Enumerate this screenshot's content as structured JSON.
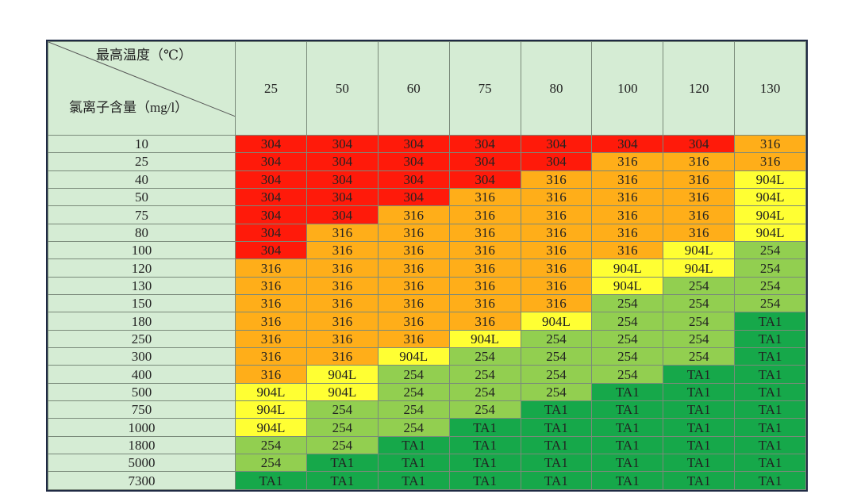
{
  "table": {
    "corner_top": "最高温度（℃）",
    "corner_bottom": "氯离子含量（mg/l）",
    "columns": [
      "25",
      "50",
      "60",
      "75",
      "80",
      "100",
      "120",
      "130"
    ],
    "grade_colors": {
      "304": "#ff1a0a",
      "316": "#ffae19",
      "904L": "#ffff33",
      "254": "#92cf50",
      "TA1": "#16a84a"
    },
    "rows": [
      {
        "label": "10",
        "cells": [
          "304",
          "304",
          "304",
          "304",
          "304",
          "304",
          "304",
          "316"
        ]
      },
      {
        "label": "25",
        "cells": [
          "304",
          "304",
          "304",
          "304",
          "304",
          "316",
          "316",
          "316"
        ]
      },
      {
        "label": "40",
        "cells": [
          "304",
          "304",
          "304",
          "304",
          "316",
          "316",
          "316",
          "904L"
        ]
      },
      {
        "label": "50",
        "cells": [
          "304",
          "304",
          "304",
          "316",
          "316",
          "316",
          "316",
          "904L"
        ]
      },
      {
        "label": "75",
        "cells": [
          "304",
          "304",
          "316",
          "316",
          "316",
          "316",
          "316",
          "904L"
        ]
      },
      {
        "label": "80",
        "cells": [
          "304",
          "316",
          "316",
          "316",
          "316",
          "316",
          "316",
          "904L"
        ]
      },
      {
        "label": "100",
        "cells": [
          "304",
          "316",
          "316",
          "316",
          "316",
          "316",
          "904L",
          "254"
        ]
      },
      {
        "label": "120",
        "cells": [
          "316",
          "316",
          "316",
          "316",
          "316",
          "904L",
          "904L",
          "254"
        ]
      },
      {
        "label": "130",
        "cells": [
          "316",
          "316",
          "316",
          "316",
          "316",
          "904L",
          "254",
          "254"
        ]
      },
      {
        "label": "150",
        "cells": [
          "316",
          "316",
          "316",
          "316",
          "316",
          "254",
          "254",
          "254"
        ]
      },
      {
        "label": "180",
        "cells": [
          "316",
          "316",
          "316",
          "316",
          "904L",
          "254",
          "254",
          "TA1"
        ]
      },
      {
        "label": "250",
        "cells": [
          "316",
          "316",
          "316",
          "904L",
          "254",
          "254",
          "254",
          "TA1"
        ]
      },
      {
        "label": "300",
        "cells": [
          "316",
          "316",
          "904L",
          "254",
          "254",
          "254",
          "254",
          "TA1"
        ]
      },
      {
        "label": "400",
        "cells": [
          "316",
          "904L",
          "254",
          "254",
          "254",
          "254",
          "TA1",
          "TA1"
        ]
      },
      {
        "label": "500",
        "cells": [
          "904L",
          "904L",
          "254",
          "254",
          "254",
          "TA1",
          "TA1",
          "TA1"
        ]
      },
      {
        "label": "750",
        "cells": [
          "904L",
          "254",
          "254",
          "254",
          "TA1",
          "TA1",
          "TA1",
          "TA1"
        ]
      },
      {
        "label": "1000",
        "cells": [
          "904L",
          "254",
          "254",
          "TA1",
          "TA1",
          "TA1",
          "TA1",
          "TA1"
        ]
      },
      {
        "label": "1800",
        "cells": [
          "254",
          "254",
          "TA1",
          "TA1",
          "TA1",
          "TA1",
          "TA1",
          "TA1"
        ]
      },
      {
        "label": "5000",
        "cells": [
          "254",
          "TA1",
          "TA1",
          "TA1",
          "TA1",
          "TA1",
          "TA1",
          "TA1"
        ]
      },
      {
        "label": "7300",
        "cells": [
          "TA1",
          "TA1",
          "TA1",
          "TA1",
          "TA1",
          "TA1",
          "TA1",
          "TA1"
        ]
      }
    ]
  }
}
